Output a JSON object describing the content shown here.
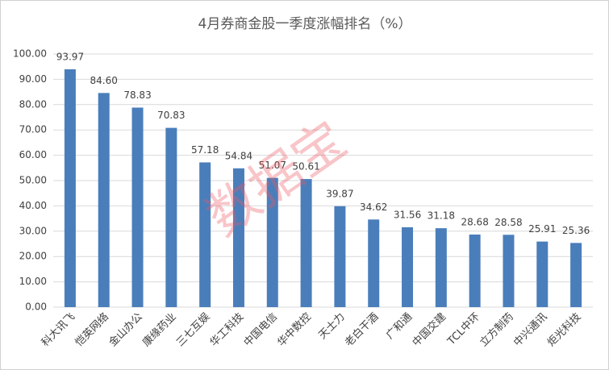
{
  "chart_data": {
    "type": "bar",
    "title": "4月券商金股一季度涨幅排名（%）",
    "watermark": "数据宝",
    "categories": [
      "科大讯飞",
      "恺英网络",
      "金山办公",
      "康缘药业",
      "三七互娱",
      "华工科技",
      "中国电信",
      "华中数控",
      "天士力",
      "老白干酒",
      "广和通",
      "中国交建",
      "TCL中环",
      "立方制药",
      "中兴通讯",
      "炬光科技"
    ],
    "values": [
      93.97,
      84.6,
      78.83,
      70.83,
      57.18,
      54.84,
      51.07,
      50.61,
      39.87,
      34.62,
      31.56,
      31.18,
      28.68,
      28.58,
      25.91,
      25.36
    ],
    "value_labels": [
      "93.97",
      "84.60",
      "78.83",
      "70.83",
      "57.18",
      "54.84",
      "51.07",
      "50.61",
      "39.87",
      "34.62",
      "31.56",
      "31.18",
      "28.68",
      "28.58",
      "25.91",
      "25.36"
    ],
    "color": "#4a7ebb",
    "ylim": [
      0,
      100
    ],
    "yticks": [
      {
        "value": 0,
        "label": "0.00"
      },
      {
        "value": 10,
        "label": "10.00"
      },
      {
        "value": 20,
        "label": "20.00"
      },
      {
        "value": 30,
        "label": "30.00"
      },
      {
        "value": 40,
        "label": "40.00"
      },
      {
        "value": 50,
        "label": "50.00"
      },
      {
        "value": 60,
        "label": "60.00"
      },
      {
        "value": 70,
        "label": "70.00"
      },
      {
        "value": 80,
        "label": "80.00"
      },
      {
        "value": 90,
        "label": "90.00"
      },
      {
        "value": 100,
        "label": "100.00"
      }
    ],
    "grid": true
  }
}
